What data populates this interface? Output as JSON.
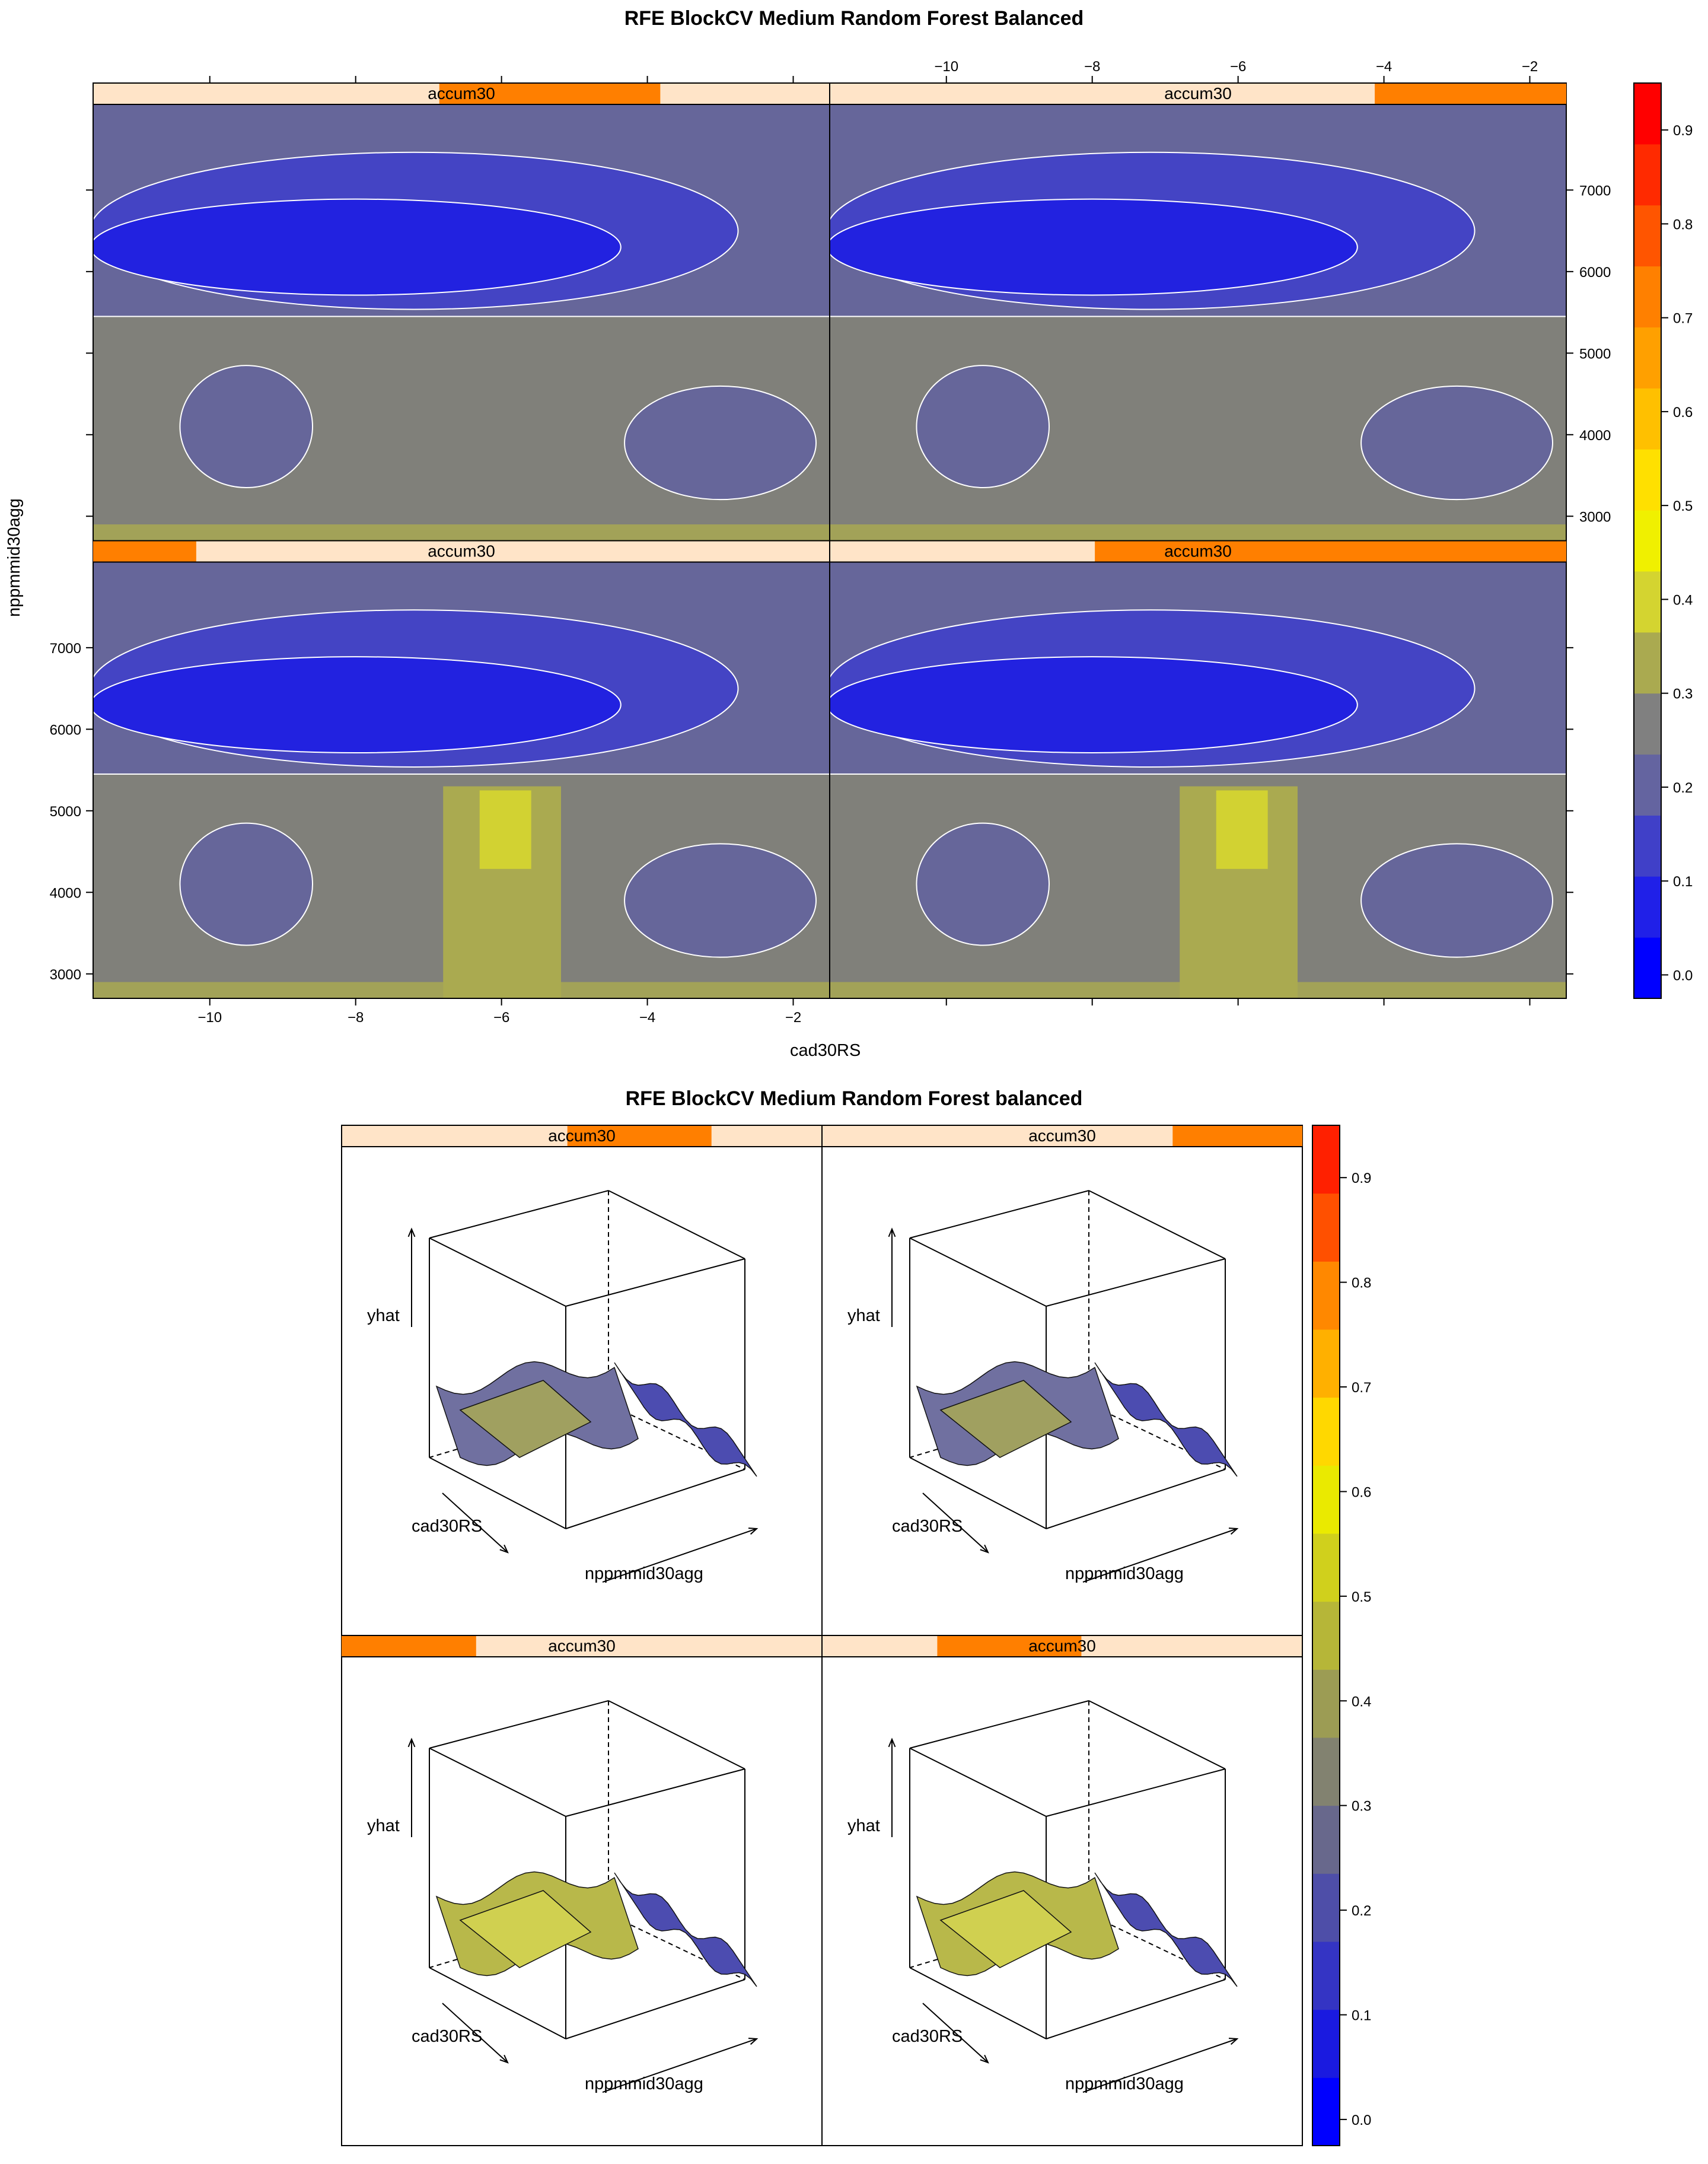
{
  "top": {
    "title": "RFE BlockCV Medium Random Forest Balanced",
    "xlabel": "cad30RS",
    "ylabel": "nppmmid30agg",
    "strip_label": "accum30"
  },
  "bottom": {
    "title": "RFE BlockCV Medium Random Forest balanced",
    "strip_label": "accum30",
    "zlabel": "yhat",
    "xlabel": "cad30RS",
    "ylabel": "nppmmid30agg"
  },
  "chart_data": [
    {
      "type": "heatmap",
      "title": "RFE BlockCV Medium Random Forest Balanced",
      "xlabel": "cad30RS",
      "ylabel": "nppmmid30agg",
      "xlim": [
        -11.6,
        -1.5
      ],
      "ylim": [
        2700,
        8050
      ],
      "x_ticks": [
        -10,
        -8,
        -6,
        -4,
        -2
      ],
      "y_ticks": [
        3000,
        4000,
        5000,
        6000,
        7000
      ],
      "conditioning_variable": "accum30",
      "panels": [
        {
          "position": "bottom-left",
          "accum30_range": [
            0.0,
            0.14
          ]
        },
        {
          "position": "bottom-right",
          "accum30_range": [
            0.36,
            1.0
          ]
        },
        {
          "position": "top-left",
          "accum30_range": [
            0.47,
            0.77
          ]
        },
        {
          "position": "top-right",
          "accum30_range": [
            0.74,
            1.0
          ]
        }
      ],
      "colorkey": {
        "ticks": [
          0.0,
          0.1,
          0.2,
          0.3,
          0.4,
          0.5,
          0.6,
          0.7,
          0.8,
          0.9
        ],
        "range": [
          -0.025,
          0.95
        ],
        "colors": [
          "#0000ff",
          "#2020e8",
          "#4040c8",
          "#6464a0",
          "#808080",
          "#aaaa50",
          "#d4d430",
          "#f0f000",
          "#ffe000",
          "#ffc000",
          "#ffa000",
          "#ff8000",
          "#ff5500",
          "#ff2a00",
          "#ff0000"
        ]
      },
      "grid": false
    },
    {
      "type": "area",
      "subtype": "3d-wireframe",
      "title": "RFE BlockCV Medium Random Forest balanced",
      "xlabel": "cad30RS",
      "ylabel": "nppmmid30agg",
      "zlabel": "yhat",
      "conditioning_variable": "accum30",
      "colorkey": {
        "ticks": [
          0.0,
          0.1,
          0.2,
          0.3,
          0.4,
          0.5,
          0.6,
          0.7,
          0.8,
          0.9
        ],
        "range": [
          -0.025,
          0.95
        ]
      }
    }
  ]
}
